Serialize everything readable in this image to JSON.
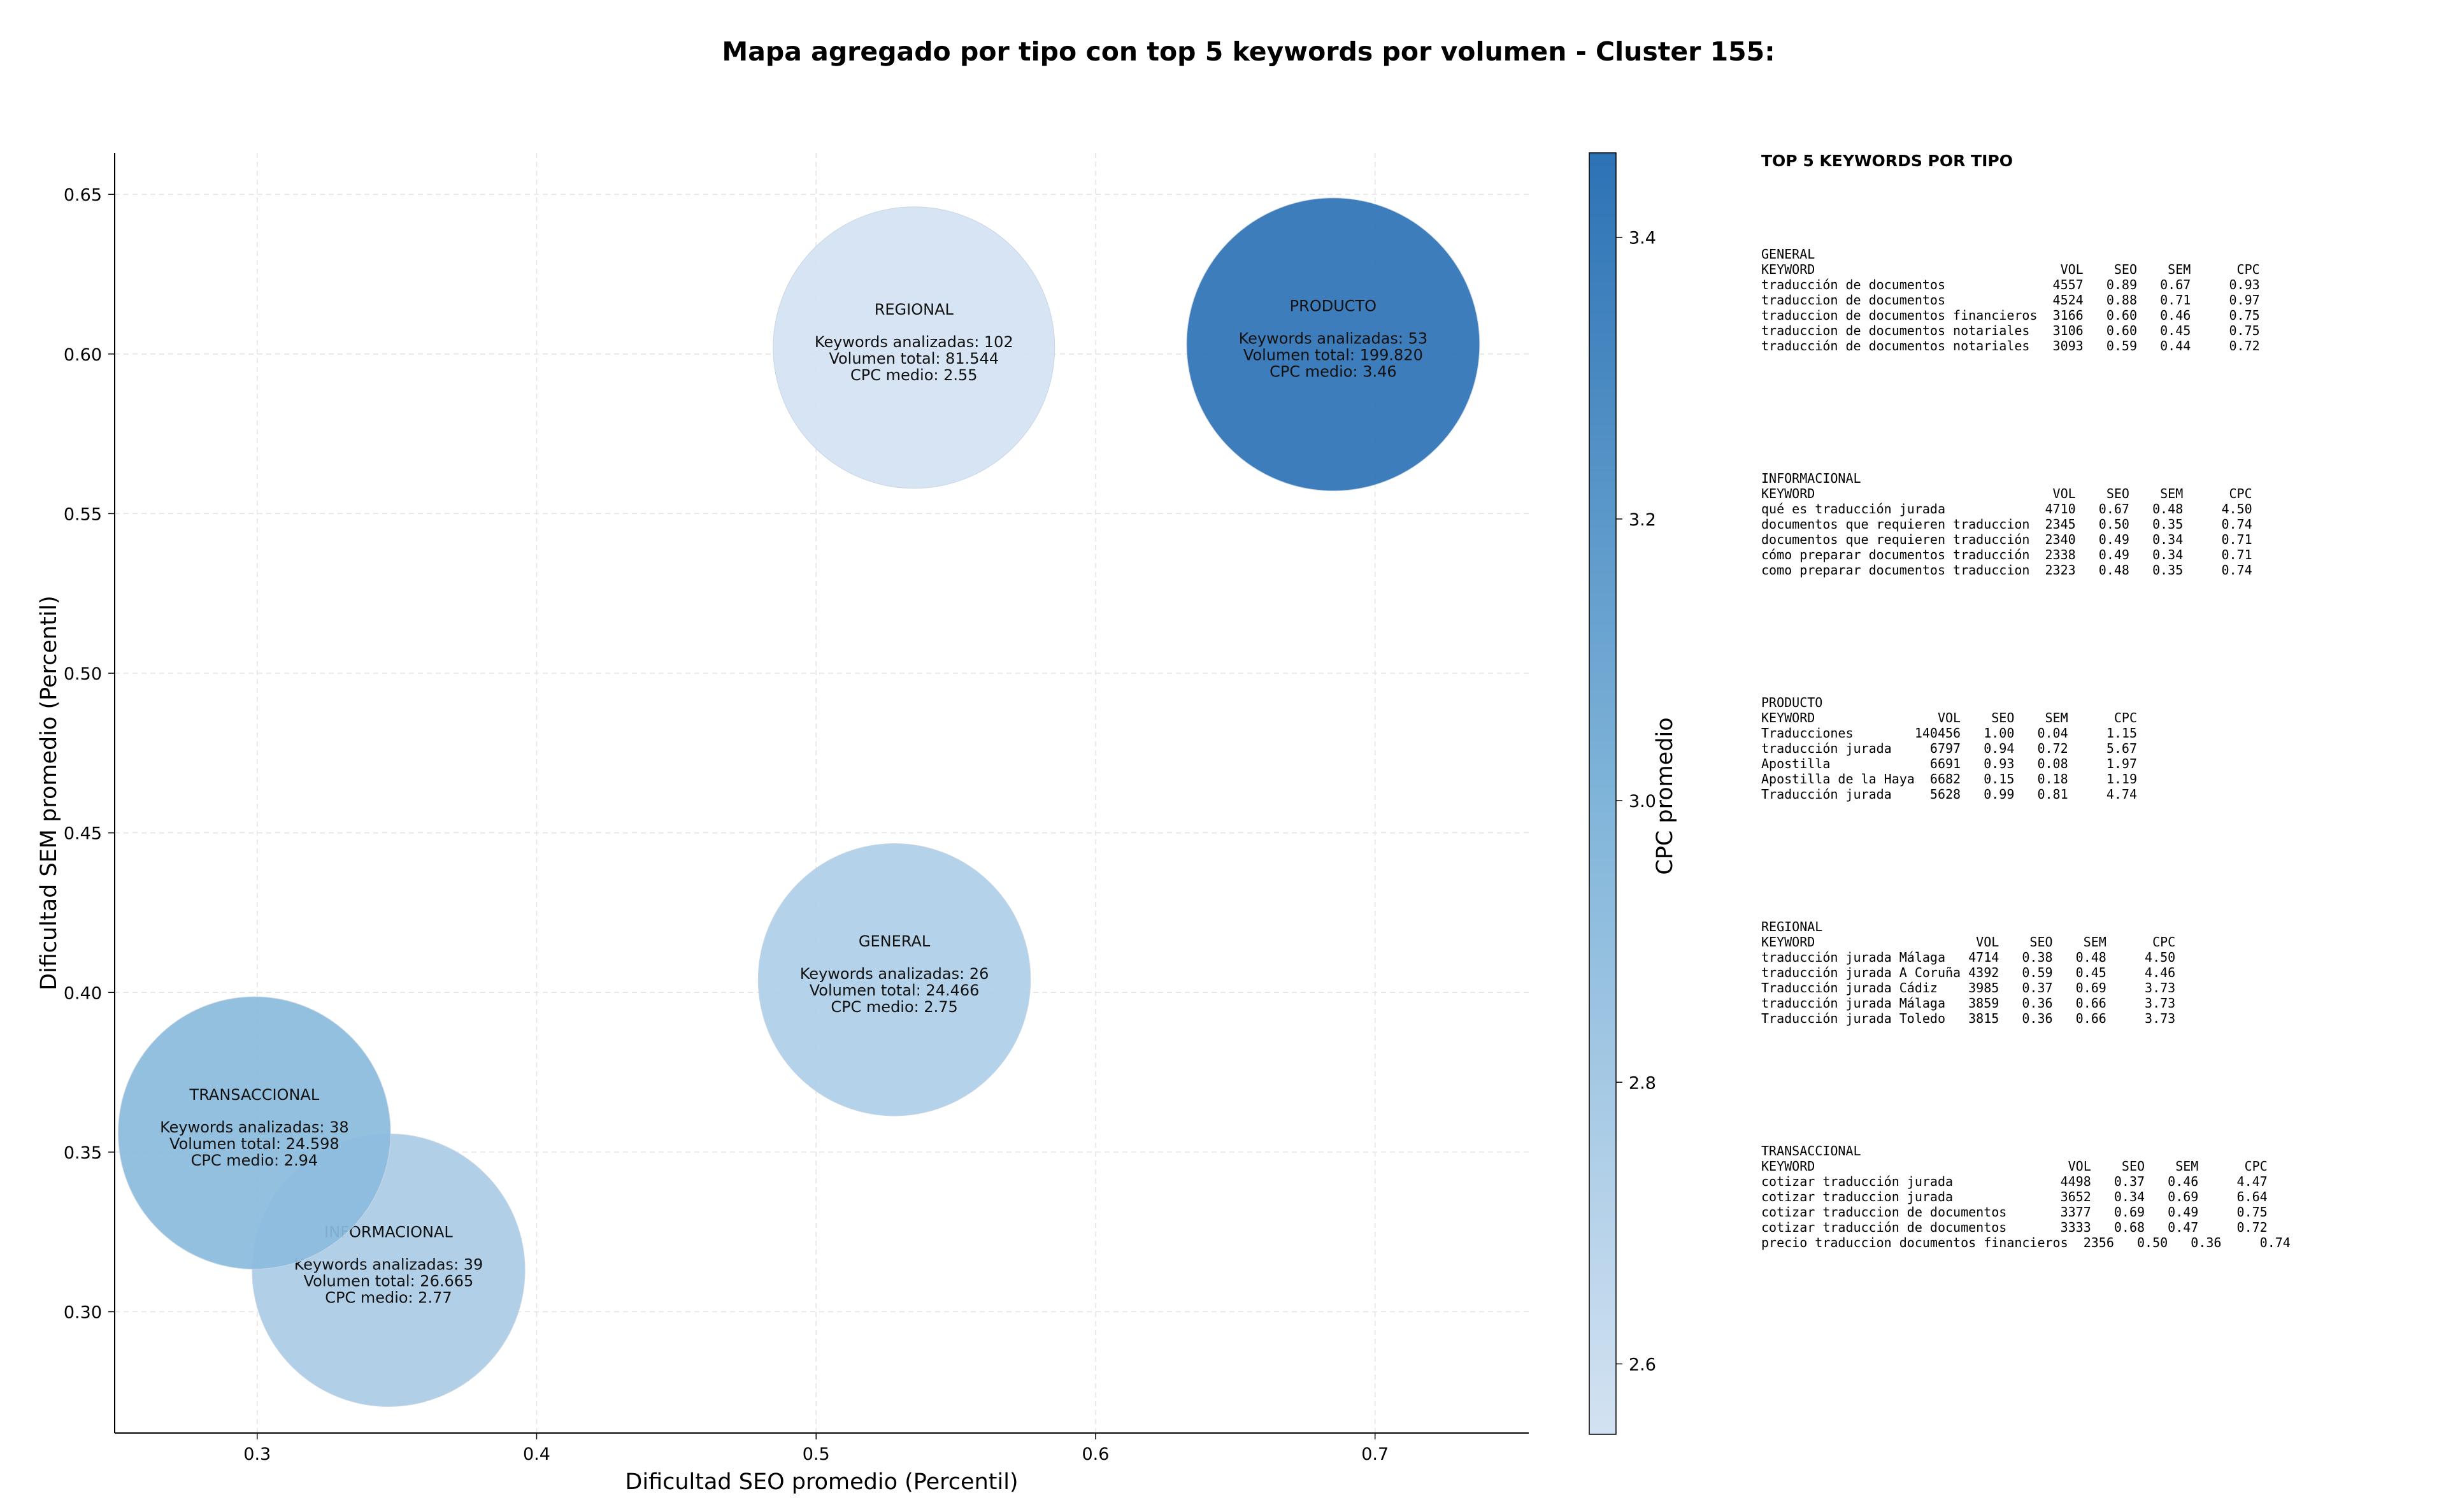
{
  "chart_data": {
    "type": "scatter",
    "title": "Mapa agregado por tipo con top 5 keywords por volumen - Cluster 155:",
    "xlabel": "Dificultad SEO promedio (Percentil)",
    "ylabel": "Dificultad SEM promedio (Percentil)",
    "xlim": [
      0.249,
      0.755
    ],
    "ylim": [
      0.262,
      0.663
    ],
    "xticks": [
      0.3,
      0.4,
      0.5,
      0.6,
      0.7
    ],
    "yticks": [
      0.3,
      0.35,
      0.4,
      0.45,
      0.5,
      0.55,
      0.6,
      0.65
    ],
    "xtick_labels": [
      "0.3",
      "0.4",
      "0.5",
      "0.6",
      "0.7"
    ],
    "ytick_labels": [
      "0.30",
      "0.35",
      "0.40",
      "0.45",
      "0.50",
      "0.55",
      "0.60",
      "0.65"
    ],
    "grid": true,
    "colorbar": {
      "label": "CPC promedio",
      "range": [
        2.55,
        3.46
      ],
      "ticks": [
        2.6,
        2.8,
        3.0,
        3.2,
        3.4
      ],
      "tick_labels": [
        "2.6",
        "2.8",
        "3.0",
        "3.2",
        "3.4"
      ],
      "color_low": "#d3e2f2",
      "color_high": "#2c72b5"
    },
    "points": [
      {
        "label": "REGIONAL",
        "x": 0.535,
        "y": 0.602,
        "keywords_line": "Keywords analizadas: 102",
        "volume_line": "Volumen total: 81.544",
        "cpc_line": "CPC medio: 2.55",
        "cpc": 2.55,
        "size": 81544
      },
      {
        "label": "PRODUCTO",
        "x": 0.685,
        "y": 0.603,
        "keywords_line": "Keywords analizadas: 53",
        "volume_line": "Volumen total: 199.820",
        "cpc_line": "CPC medio: 3.46",
        "cpc": 3.46,
        "size": 199820
      },
      {
        "label": "GENERAL",
        "x": 0.528,
        "y": 0.404,
        "keywords_line": "Keywords analizadas: 26",
        "volume_line": "Volumen total: 24.466",
        "cpc_line": "CPC medio: 2.75",
        "cpc": 2.75,
        "size": 24466
      },
      {
        "label": "INFORMACIONAL",
        "x": 0.347,
        "y": 0.313,
        "keywords_line": "Keywords analizadas: 39",
        "volume_line": "Volumen total: 26.665",
        "cpc_line": "CPC medio: 2.77",
        "cpc": 2.77,
        "size": 26665
      },
      {
        "label": "TRANSACCIONAL",
        "x": 0.299,
        "y": 0.356,
        "keywords_line": "Keywords analizadas: 38",
        "volume_line": "Volumen total: 24.598",
        "cpc_line": "CPC medio: 2.94",
        "cpc": 2.94,
        "size": 24598
      }
    ]
  },
  "side_panel": {
    "title": "TOP 5 KEYWORDS POR TIPO",
    "groups": [
      {
        "name": "GENERAL",
        "header": "KEYWORD                                VOL    SEO    SEM      CPC",
        "rows": [
          "traducción de documentos              4557   0.89   0.67     0.93",
          "traduccion de documentos              4524   0.88   0.71     0.97",
          "traduccion de documentos financieros  3166   0.60   0.46     0.75",
          "traduccion de documentos notariales   3106   0.60   0.45     0.75",
          "traducción de documentos notariales   3093   0.59   0.44     0.72"
        ]
      },
      {
        "name": "INFORMACIONAL",
        "header": "KEYWORD                               VOL    SEO    SEM      CPC",
        "rows": [
          "qué es traducción jurada             4710   0.67   0.48     4.50",
          "documentos que requieren traduccion  2345   0.50   0.35     0.74",
          "documentos que requieren traducción  2340   0.49   0.34     0.71",
          "cómo preparar documentos traducción  2338   0.49   0.34     0.71",
          "como preparar documentos traduccion  2323   0.48   0.35     0.74"
        ]
      },
      {
        "name": "PRODUCTO",
        "header": "KEYWORD                VOL    SEO    SEM      CPC",
        "rows": [
          "Traducciones        140456   1.00   0.04     1.15",
          "traducción jurada     6797   0.94   0.72     5.67",
          "Apostilla             6691   0.93   0.08     1.97",
          "Apostilla de la Haya  6682   0.15   0.18     1.19",
          "Traducción jurada     5628   0.99   0.81     4.74"
        ]
      },
      {
        "name": "REGIONAL",
        "header": "KEYWORD                     VOL    SEO    SEM      CPC",
        "rows": [
          "traducción jurada Málaga   4714   0.38   0.48     4.50",
          "traducción jurada A Coruña 4392   0.59   0.45     4.46",
          "Traducción jurada Cádiz    3985   0.37   0.69     3.73",
          "traducción jurada Málaga   3859   0.36   0.66     3.73",
          "Traducción jurada Toledo   3815   0.36   0.66     3.73"
        ]
      },
      {
        "name": "TRANSACCIONAL",
        "header": "KEYWORD                                 VOL    SEO    SEM      CPC",
        "rows": [
          "cotizar traducción jurada              4498   0.37   0.46     4.47",
          "cotizar traduccion jurada              3652   0.34   0.69     6.64",
          "cotizar traduccion de documentos       3377   0.69   0.49     0.75",
          "cotizar traducción de documentos       3333   0.68   0.47     0.72",
          "precio traduccion documentos financieros  2356   0.50   0.36     0.74"
        ]
      }
    ]
  }
}
